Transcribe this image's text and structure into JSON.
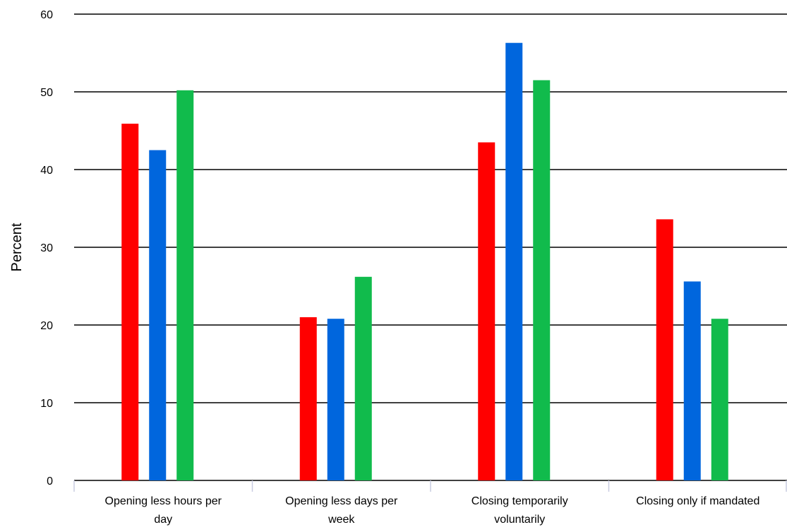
{
  "chart_data": {
    "type": "bar",
    "title": "",
    "xlabel": "",
    "ylabel": "Percent",
    "ylim": [
      0,
      60
    ],
    "y_ticks": [
      0,
      10,
      20,
      30,
      40,
      50,
      60
    ],
    "grid": "horizontal",
    "categories": [
      [
        "Opening less hours per",
        "day"
      ],
      [
        "Opening less days per",
        "week"
      ],
      [
        "Closing temporarily",
        "voluntarily"
      ],
      [
        "Closing only if mandated"
      ]
    ],
    "series": [
      {
        "color": "#ff0000",
        "values": [
          45.9,
          21.0,
          43.5,
          33.6
        ]
      },
      {
        "color": "#0066dd",
        "values": [
          42.5,
          20.8,
          56.3,
          25.6
        ]
      },
      {
        "color": "#11bb4c",
        "values": [
          50.2,
          26.2,
          51.5,
          20.8
        ]
      }
    ]
  }
}
